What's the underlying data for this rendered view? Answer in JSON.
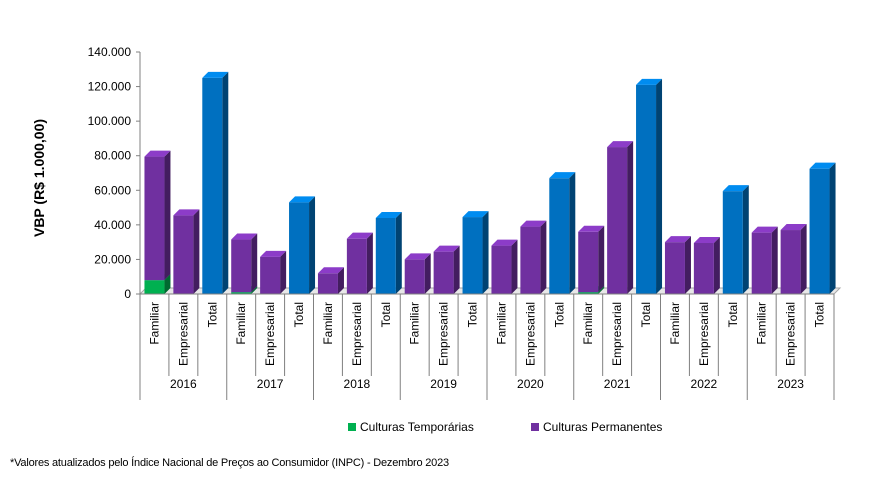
{
  "chart_data": {
    "type": "bar",
    "stacked": true,
    "three_d": true,
    "ylabel": "VBP (R$ 1.000,00)",
    "ylim": [
      0,
      140000
    ],
    "yticks": [
      "0",
      "20.000",
      "40.000",
      "60.000",
      "80.000",
      "100.000",
      "120.000",
      "140.000"
    ],
    "ytick_values": [
      0,
      20000,
      40000,
      60000,
      80000,
      100000,
      120000,
      140000
    ],
    "years": [
      "2016",
      "2017",
      "2018",
      "2019",
      "2020",
      "2021",
      "2022",
      "2023"
    ],
    "categories_per_year": [
      "Familiar",
      "Empresarial",
      "Total"
    ],
    "series": [
      {
        "name": "Culturas Temporárias",
        "color": "#00b050",
        "values": [
          [
            8000,
            0,
            0
          ],
          [
            1000,
            0,
            0
          ],
          [
            0,
            0,
            0
          ],
          [
            0,
            0,
            0
          ],
          [
            0,
            0,
            0
          ],
          [
            1000,
            0,
            0
          ],
          [
            0,
            0,
            0
          ],
          [
            0,
            0,
            0
          ]
        ]
      },
      {
        "name": "Culturas Permanentes",
        "color": "#7030a0",
        "values": [
          [
            71500,
            45500,
            0
          ],
          [
            30500,
            21500,
            0
          ],
          [
            12000,
            32000,
            0
          ],
          [
            20000,
            24500,
            0
          ],
          [
            28000,
            39000,
            0
          ],
          [
            35000,
            85000,
            0
          ],
          [
            30000,
            29500,
            0
          ],
          [
            35500,
            37000,
            0
          ]
        ]
      },
      {
        "name": "Total",
        "color": "#0070c0",
        "values": [
          [
            0,
            0,
            125000
          ],
          [
            0,
            0,
            53000
          ],
          [
            0,
            0,
            44000
          ],
          [
            0,
            0,
            44500
          ],
          [
            0,
            0,
            67000
          ],
          [
            0,
            0,
            121000
          ],
          [
            0,
            0,
            59500
          ],
          [
            0,
            0,
            72500
          ]
        ]
      }
    ],
    "legend": [
      {
        "label": "Culturas Temporárias",
        "color": "#00b050"
      },
      {
        "label": "Culturas Permanentes",
        "color": "#7030a0"
      }
    ],
    "legend_position": "bottom",
    "footnote": "*Valores atualizados pelo Índice Nacional de Preços ao Consumidor (INPC) - Dezembro 2023"
  }
}
